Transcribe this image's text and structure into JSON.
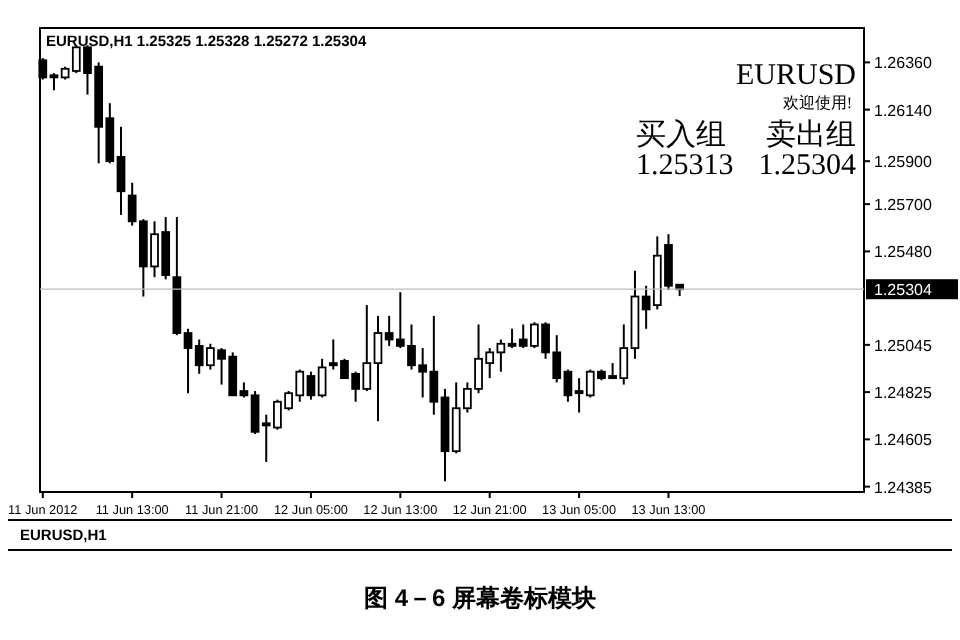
{
  "chart_data": {
    "type": "candlestick",
    "title": "EURUSD,H1 1.25325 1.25328 1.25272 1.25304",
    "x": [
      "2012-06-11T05:00",
      "2012-06-11T06:00",
      "2012-06-11T07:00",
      "2012-06-11T08:00",
      "2012-06-11T09:00",
      "2012-06-11T10:00",
      "2012-06-11T11:00",
      "2012-06-11T12:00",
      "2012-06-11T13:00",
      "2012-06-11T14:00",
      "2012-06-11T15:00",
      "2012-06-11T16:00",
      "2012-06-11T17:00",
      "2012-06-11T18:00",
      "2012-06-11T19:00",
      "2012-06-11T20:00",
      "2012-06-11T21:00",
      "2012-06-11T22:00",
      "2012-06-11T23:00",
      "2012-06-12T00:00",
      "2012-06-12T01:00",
      "2012-06-12T02:00",
      "2012-06-12T03:00",
      "2012-06-12T04:00",
      "2012-06-12T05:00",
      "2012-06-12T06:00",
      "2012-06-12T07:00",
      "2012-06-12T08:00",
      "2012-06-12T09:00",
      "2012-06-12T10:00",
      "2012-06-12T11:00",
      "2012-06-12T12:00",
      "2012-06-12T13:00",
      "2012-06-12T14:00",
      "2012-06-12T15:00",
      "2012-06-12T16:00",
      "2012-06-12T17:00",
      "2012-06-12T18:00",
      "2012-06-12T19:00",
      "2012-06-12T20:00",
      "2012-06-12T21:00",
      "2012-06-12T22:00",
      "2012-06-12T23:00",
      "2012-06-13T00:00",
      "2012-06-13T01:00",
      "2012-06-13T02:00",
      "2012-06-13T03:00",
      "2012-06-13T04:00",
      "2012-06-13T05:00",
      "2012-06-13T06:00",
      "2012-06-13T07:00",
      "2012-06-13T08:00",
      "2012-06-13T09:00",
      "2012-06-13T10:00",
      "2012-06-13T11:00",
      "2012-06-13T12:00",
      "2012-06-13T13:00",
      "2012-06-13T14:00"
    ],
    "ohlc": [
      [
        1.2637,
        1.2638,
        1.2628,
        1.2629
      ],
      [
        1.263,
        1.2631,
        1.2623,
        1.2629
      ],
      [
        1.2629,
        1.2634,
        1.2628,
        1.2633
      ],
      [
        1.2632,
        1.2644,
        1.2631,
        1.2643
      ],
      [
        1.2643,
        1.2644,
        1.2621,
        1.2631
      ],
      [
        1.2634,
        1.2636,
        1.2589,
        1.2606
      ],
      [
        1.261,
        1.2617,
        1.2589,
        1.259
      ],
      [
        1.2592,
        1.2606,
        1.2565,
        1.2576
      ],
      [
        1.2574,
        1.258,
        1.256,
        1.2562
      ],
      [
        1.2562,
        1.2563,
        1.2527,
        1.2541
      ],
      [
        1.2541,
        1.2562,
        1.2536,
        1.2556
      ],
      [
        1.2557,
        1.2564,
        1.2535,
        1.2537
      ],
      [
        1.2536,
        1.2564,
        1.2509,
        1.251
      ],
      [
        1.251,
        1.2512,
        1.2482,
        1.2503
      ],
      [
        1.2504,
        1.2507,
        1.2491,
        1.2495
      ],
      [
        1.2495,
        1.2505,
        1.2493,
        1.2503
      ],
      [
        1.2502,
        1.2503,
        1.2486,
        1.2498
      ],
      [
        1.2499,
        1.2501,
        1.2481,
        1.2481
      ],
      [
        1.2483,
        1.2487,
        1.248,
        1.2481
      ],
      [
        1.2481,
        1.2483,
        1.2463,
        1.2464
      ],
      [
        1.2468,
        1.2472,
        1.245,
        1.2467
      ],
      [
        1.2466,
        1.2479,
        1.2465,
        1.2478
      ],
      [
        1.2475,
        1.2483,
        1.2474,
        1.2482
      ],
      [
        1.2481,
        1.2493,
        1.2478,
        1.2492
      ],
      [
        1.249,
        1.2492,
        1.2479,
        1.2481
      ],
      [
        1.2481,
        1.2498,
        1.248,
        1.2494
      ],
      [
        1.2496,
        1.2507,
        1.2493,
        1.2495
      ],
      [
        1.2497,
        1.2498,
        1.2489,
        1.2489
      ],
      [
        1.2491,
        1.2492,
        1.2478,
        1.2484
      ],
      [
        1.2484,
        1.2523,
        1.2483,
        1.2496
      ],
      [
        1.2496,
        1.2518,
        1.2469,
        1.251
      ],
      [
        1.251,
        1.2518,
        1.2504,
        1.2507
      ],
      [
        1.2507,
        1.2529,
        1.2503,
        1.2504
      ],
      [
        1.2504,
        1.2514,
        1.2493,
        1.2495
      ],
      [
        1.2495,
        1.2503,
        1.248,
        1.2492
      ],
      [
        1.2492,
        1.2518,
        1.2472,
        1.2478
      ],
      [
        1.248,
        1.2484,
        1.2441,
        1.2455
      ],
      [
        1.2455,
        1.2487,
        1.2454,
        1.2475
      ],
      [
        1.2475,
        1.2487,
        1.2473,
        1.2484
      ],
      [
        1.2484,
        1.2514,
        1.2482,
        1.2498
      ],
      [
        1.2496,
        1.2503,
        1.2489,
        1.2501
      ],
      [
        1.2501,
        1.2507,
        1.2492,
        1.2505
      ],
      [
        1.2505,
        1.2512,
        1.2503,
        1.2504
      ],
      [
        1.2507,
        1.2514,
        1.2503,
        1.2504
      ],
      [
        1.2504,
        1.2515,
        1.2503,
        1.2514
      ],
      [
        1.2514,
        1.2515,
        1.2498,
        1.2501
      ],
      [
        1.2501,
        1.2509,
        1.2487,
        1.2489
      ],
      [
        1.2492,
        1.2493,
        1.2478,
        1.2481
      ],
      [
        1.2483,
        1.2489,
        1.2473,
        1.2482
      ],
      [
        1.2481,
        1.2493,
        1.248,
        1.2492
      ],
      [
        1.2492,
        1.2493,
        1.2488,
        1.2489
      ],
      [
        1.249,
        1.2496,
        1.2489,
        1.2489
      ],
      [
        1.2489,
        1.2514,
        1.2486,
        1.2503
      ],
      [
        1.2503,
        1.2539,
        1.2498,
        1.2527
      ],
      [
        1.2527,
        1.2532,
        1.2512,
        1.2521
      ],
      [
        1.2523,
        1.2555,
        1.2521,
        1.2546
      ],
      [
        1.2551,
        1.2556,
        1.253,
        1.2532
      ],
      [
        1.25325,
        1.25328,
        1.25272,
        1.25304
      ]
    ],
    "color": "#000000",
    "xlim": [
      "2012-06-11T04:45",
      "2012-06-14T06:30"
    ],
    "xticks": [
      {
        "value": "2012-06-11T05:00",
        "label": "11 Jun 2012"
      },
      {
        "value": "2012-06-11T13:00",
        "label": "11 Jun 13:00"
      },
      {
        "value": "2012-06-11T21:00",
        "label": "11 Jun 21:00"
      },
      {
        "value": "2012-06-12T05:00",
        "label": "12 Jun 05:00"
      },
      {
        "value": "2012-06-12T13:00",
        "label": "12 Jun 13:00"
      },
      {
        "value": "2012-06-12T21:00",
        "label": "12 Jun 21:00"
      },
      {
        "value": "2012-06-13T05:00",
        "label": "13 Jun 05:00"
      },
      {
        "value": "2012-06-13T13:00",
        "label": "13 Jun 13:00"
      }
    ],
    "ylim": [
      1.2436,
      1.2652
    ],
    "yticks": [
      {
        "value": 1.2636,
        "label": "1.26360"
      },
      {
        "value": 1.2614,
        "label": "1.26140"
      },
      {
        "value": 1.259,
        "label": "1.25900"
      },
      {
        "value": 1.257,
        "label": "1.25700"
      },
      {
        "value": 1.2548,
        "label": "1.25480"
      },
      {
        "value": 1.25045,
        "label": "1.25045"
      },
      {
        "value": 1.24825,
        "label": "1.24825"
      },
      {
        "value": 1.24605,
        "label": "1.24605"
      },
      {
        "value": 1.24385,
        "label": "1.24385"
      }
    ],
    "ref_lines": [
      {
        "axis": "y",
        "value": 1.25304,
        "label": "1.25304"
      }
    ],
    "annotations": [
      "EURUSD",
      "欢迎使用!",
      "买入组",
      "卖出组",
      "1.25313",
      "1.25304",
      "EURUSD,H1",
      "图 4－6  屏幕卷标模块"
    ]
  }
}
